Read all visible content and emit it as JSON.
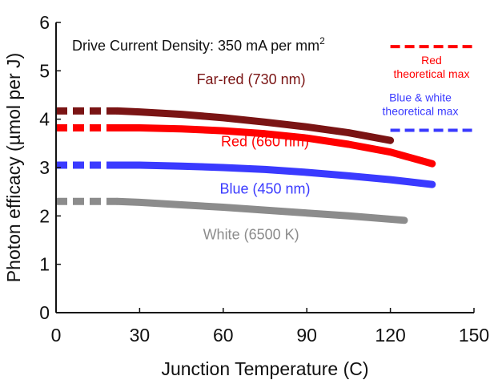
{
  "chart_data": {
    "type": "line",
    "title": "",
    "xlabel": "Junction Temperature (C)",
    "ylabel": "Photon efficacy (µmol per J)",
    "xlim": [
      0,
      150
    ],
    "ylim": [
      0,
      6
    ],
    "xticks": [
      0,
      30,
      60,
      90,
      120,
      150
    ],
    "yticks": [
      0,
      1,
      2,
      3,
      4,
      5,
      6
    ],
    "grid": false,
    "annotation": {
      "prefix": "Drive Current Density: 350 mA per mm",
      "superscript": "2"
    },
    "series": [
      {
        "name": "Far-red (730 nm)",
        "color": "#7a1414",
        "dashed_x": [
          0,
          22
        ],
        "x": [
          22,
          30,
          45,
          60,
          75,
          90,
          105,
          120
        ],
        "y": [
          4.17,
          4.15,
          4.1,
          4.03,
          3.94,
          3.84,
          3.72,
          3.56
        ]
      },
      {
        "name": "Red (660 nm)",
        "color": "#ff0000",
        "dashed_x": [
          0,
          22
        ],
        "x": [
          22,
          30,
          45,
          60,
          75,
          90,
          105,
          120,
          135
        ],
        "y": [
          3.82,
          3.82,
          3.8,
          3.76,
          3.7,
          3.61,
          3.48,
          3.32,
          3.08
        ]
      },
      {
        "name": "Blue (450 nm)",
        "color": "#3a3aff",
        "dashed_x": [
          0,
          22
        ],
        "x": [
          22,
          30,
          45,
          60,
          75,
          90,
          105,
          120,
          135
        ],
        "y": [
          3.05,
          3.05,
          3.03,
          3.0,
          2.96,
          2.9,
          2.83,
          2.75,
          2.65
        ]
      },
      {
        "name": "White (6500 K)",
        "color": "#8c8c8c",
        "dashed_x": [
          0,
          22
        ],
        "x": [
          22,
          30,
          45,
          60,
          75,
          90,
          105,
          125
        ],
        "y": [
          2.3,
          2.28,
          2.23,
          2.18,
          2.12,
          2.06,
          2.0,
          1.91
        ]
      }
    ],
    "reference_lines": [
      {
        "name": "Red theoretical max",
        "line1": "Red",
        "line2": "theoretical max",
        "y": 5.5,
        "x": [
          120,
          150
        ],
        "color": "#ff0000"
      },
      {
        "name": "Blue & white theoretical max",
        "line1": "Blue & white",
        "line2": "theoretical max",
        "y": 3.77,
        "x": [
          120,
          150
        ],
        "color": "#3a3aff"
      }
    ]
  }
}
